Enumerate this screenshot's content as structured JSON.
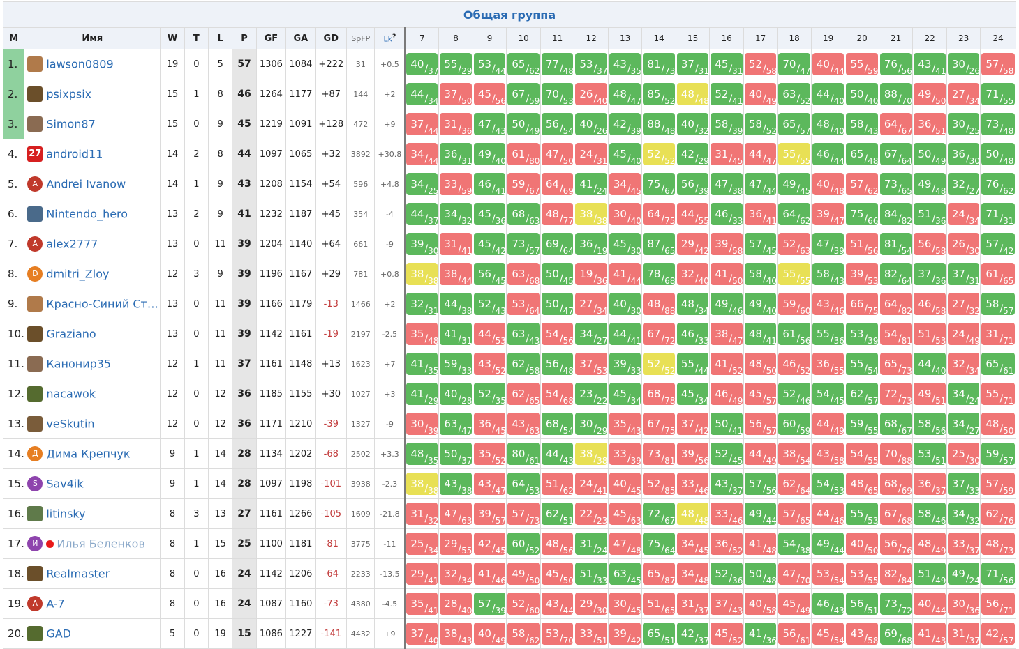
{
  "title": "Общая группа",
  "headers": {
    "pos": "M",
    "name": "Имя",
    "w": "W",
    "t": "T",
    "l": "L",
    "p": "P",
    "gf": "GF",
    "ga": "GA",
    "gd": "GD",
    "spfp": "SpFP",
    "lk": "Lk",
    "lk_help": "?",
    "rounds": [
      "7",
      "8",
      "9",
      "10",
      "11",
      "12",
      "13",
      "14",
      "15",
      "16",
      "17",
      "18",
      "19",
      "20",
      "21",
      "22",
      "23",
      "24"
    ]
  },
  "colors": {
    "win": "#5cb85c",
    "loss": "#f07575",
    "draw": "#e8e055",
    "top3": "#8fd19e",
    "link": "#2a6bb3"
  },
  "rows": [
    {
      "pos": "1.",
      "name": "lawson0809",
      "avatar": "photo",
      "w": "19",
      "t": "0",
      "l": "5",
      "p": "57",
      "gf": "1306",
      "ga": "1084",
      "gd": "+222",
      "spfp": "31",
      "lk": "+0.5",
      "res": [
        "40/37",
        "55/29",
        "53/44",
        "65/62",
        "77/48",
        "53/37",
        "43/35",
        "81/73",
        "37/31",
        "45/31",
        "52/58",
        "70/47",
        "40/44",
        "55/59",
        "76/56",
        "43/41",
        "30/26",
        "57/58"
      ]
    },
    {
      "pos": "2.",
      "name": "psixpsix",
      "avatar": "photo",
      "w": "15",
      "t": "1",
      "l": "8",
      "p": "46",
      "gf": "1264",
      "ga": "1177",
      "gd": "+87",
      "spfp": "144",
      "lk": "+2",
      "res": [
        "44/34",
        "37/50",
        "45/56",
        "67/59",
        "70/53",
        "26/40",
        "48/47",
        "85/52",
        "48/48",
        "52/41",
        "40/49",
        "63/52",
        "44/40",
        "50/40",
        "88/70",
        "49/50",
        "27/34",
        "71/55"
      ]
    },
    {
      "pos": "3.",
      "name": "Simon87",
      "avatar": "photo",
      "w": "15",
      "t": "0",
      "l": "9",
      "p": "45",
      "gf": "1219",
      "ga": "1091",
      "gd": "+128",
      "spfp": "472",
      "lk": "+9",
      "res": [
        "37/44",
        "31/36",
        "47/43",
        "50/49",
        "56/54",
        "40/26",
        "42/39",
        "88/48",
        "40/32",
        "58/39",
        "58/52",
        "65/57",
        "48/40",
        "58/43",
        "64/67",
        "36/51",
        "30/25",
        "73/48"
      ]
    },
    {
      "pos": "4.",
      "name": "android11",
      "avatar": "27",
      "w": "14",
      "t": "2",
      "l": "8",
      "p": "44",
      "gf": "1097",
      "ga": "1065",
      "gd": "+32",
      "spfp": "3892",
      "lk": "+30.8",
      "res": [
        "34/44",
        "36/31",
        "49/40",
        "61/80",
        "47/50",
        "24/31",
        "45/40",
        "52/52",
        "42/29",
        "31/45",
        "44/47",
        "55/55",
        "46/44",
        "65/48",
        "67/64",
        "50/49",
        "36/30",
        "50/48"
      ]
    },
    {
      "pos": "5.",
      "name": "Andrei Ivanow",
      "avatar": "A",
      "w": "14",
      "t": "1",
      "l": "9",
      "p": "43",
      "gf": "1208",
      "ga": "1154",
      "gd": "+54",
      "spfp": "596",
      "lk": "+4.8",
      "res": [
        "34/25",
        "33/59",
        "46/41",
        "59/67",
        "64/69",
        "41/24",
        "34/45",
        "75/67",
        "56/39",
        "47/38",
        "47/44",
        "49/45",
        "40/48",
        "57/62",
        "73/65",
        "49/48",
        "32/27",
        "76/62"
      ]
    },
    {
      "pos": "6.",
      "name": "Nintendo_hero",
      "avatar": "photo",
      "w": "13",
      "t": "2",
      "l": "9",
      "p": "41",
      "gf": "1232",
      "ga": "1187",
      "gd": "+45",
      "spfp": "354",
      "lk": "-4",
      "res": [
        "44/37",
        "34/32",
        "45/36",
        "68/63",
        "48/77",
        "38/38",
        "30/40",
        "64/75",
        "44/55",
        "46/33",
        "36/41",
        "64/62",
        "39/47",
        "75/66",
        "84/82",
        "51/36",
        "24/34",
        "71/31"
      ]
    },
    {
      "pos": "7.",
      "name": "alex2777",
      "avatar": "A",
      "w": "13",
      "t": "0",
      "l": "11",
      "p": "39",
      "gf": "1204",
      "ga": "1140",
      "gd": "+64",
      "spfp": "661",
      "lk": "-9",
      "res": [
        "39/30",
        "31/41",
        "45/42",
        "73/57",
        "69/64",
        "36/19",
        "45/30",
        "87/65",
        "29/42",
        "39/58",
        "57/45",
        "52/63",
        "47/39",
        "51/56",
        "81/54",
        "56/58",
        "26/30",
        "57/42"
      ]
    },
    {
      "pos": "8.",
      "name": "dmitri_Zloy",
      "avatar": "D",
      "w": "12",
      "t": "3",
      "l": "9",
      "p": "39",
      "gf": "1196",
      "ga": "1167",
      "gd": "+29",
      "spfp": "781",
      "lk": "+0.8",
      "res": [
        "38/38",
        "38/44",
        "56/45",
        "63/68",
        "50/45",
        "19/36",
        "41/44",
        "78/68",
        "32/40",
        "41/50",
        "58/40",
        "55/55",
        "58/43",
        "39/53",
        "82/64",
        "37/36",
        "37/31",
        "61/65"
      ]
    },
    {
      "pos": "9.",
      "name": "Красно-Синий Ст…",
      "avatar": "photo",
      "w": "13",
      "t": "0",
      "l": "11",
      "p": "39",
      "gf": "1166",
      "ga": "1179",
      "gd": "-13",
      "spfp": "1466",
      "lk": "+2",
      "res": [
        "32/31",
        "44/38",
        "52/43",
        "53/64",
        "50/47",
        "27/34",
        "40/30",
        "48/88",
        "48/34",
        "49/46",
        "49/40",
        "59/60",
        "43/46",
        "66/75",
        "64/82",
        "46/58",
        "27/32",
        "58/57"
      ]
    },
    {
      "pos": "10.",
      "name": "Graziano",
      "avatar": "photo",
      "w": "13",
      "t": "0",
      "l": "11",
      "p": "39",
      "gf": "1142",
      "ga": "1161",
      "gd": "-19",
      "spfp": "2197",
      "lk": "-2.5",
      "res": [
        "35/48",
        "41/31",
        "44/53",
        "63/43",
        "54/56",
        "34/27",
        "44/41",
        "67/72",
        "46/33",
        "38/47",
        "48/41",
        "61/56",
        "55/36",
        "53/39",
        "54/81",
        "51/53",
        "24/49",
        "31/71"
      ]
    },
    {
      "pos": "11.",
      "name": "Канонир35",
      "avatar": "photo",
      "w": "12",
      "t": "1",
      "l": "11",
      "p": "37",
      "gf": "1161",
      "ga": "1148",
      "gd": "+13",
      "spfp": "1623",
      "lk": "+7",
      "res": [
        "41/35",
        "59/33",
        "43/52",
        "62/58",
        "56/48",
        "37/53",
        "39/33",
        "52/52",
        "55/44",
        "41/52",
        "48/50",
        "46/52",
        "36/55",
        "55/54",
        "65/73",
        "44/40",
        "32/34",
        "65/61"
      ]
    },
    {
      "pos": "12.",
      "name": "nacawok",
      "avatar": "photo",
      "w": "12",
      "t": "0",
      "l": "12",
      "p": "36",
      "gf": "1185",
      "ga": "1155",
      "gd": "+30",
      "spfp": "1027",
      "lk": "+3",
      "res": [
        "41/29",
        "40/28",
        "52/35",
        "62/65",
        "54/68",
        "23/22",
        "45/34",
        "68/78",
        "45/34",
        "46/49",
        "45/57",
        "52/46",
        "54/45",
        "62/57",
        "72/73",
        "49/51",
        "34/24",
        "55/71"
      ]
    },
    {
      "pos": "13.",
      "name": "veSkutin",
      "avatar": "photo",
      "w": "12",
      "t": "0",
      "l": "12",
      "p": "36",
      "gf": "1171",
      "ga": "1210",
      "gd": "-39",
      "spfp": "1327",
      "lk": "-9",
      "res": [
        "30/39",
        "63/47",
        "36/45",
        "43/63",
        "68/54",
        "30/29",
        "35/43",
        "67/75",
        "37/42",
        "50/41",
        "56/57",
        "60/59",
        "44/49",
        "59/55",
        "68/67",
        "58/56",
        "34/27",
        "48/50"
      ]
    },
    {
      "pos": "14.",
      "name": "Дима Крепчук",
      "avatar": "Д",
      "w": "9",
      "t": "1",
      "l": "14",
      "p": "28",
      "gf": "1134",
      "ga": "1202",
      "gd": "-68",
      "spfp": "2502",
      "lk": "+3.3",
      "res": [
        "48/35",
        "50/37",
        "35/52",
        "80/61",
        "44/43",
        "38/38",
        "33/39",
        "73/81",
        "39/56",
        "52/45",
        "44/49",
        "38/54",
        "43/58",
        "54/55",
        "70/88",
        "53/51",
        "25/30",
        "59/57"
      ]
    },
    {
      "pos": "15.",
      "name": "Sav4ik",
      "avatar": "S",
      "w": "9",
      "t": "1",
      "l": "14",
      "p": "28",
      "gf": "1097",
      "ga": "1198",
      "gd": "-101",
      "spfp": "3938",
      "lk": "-2.3",
      "res": [
        "38/38",
        "43/38",
        "43/47",
        "64/53",
        "51/62",
        "24/41",
        "40/45",
        "52/85",
        "33/46",
        "43/37",
        "57/56",
        "62/64",
        "54/53",
        "48/65",
        "68/69",
        "36/37",
        "37/33",
        "57/59"
      ]
    },
    {
      "pos": "16.",
      "name": "litinsky",
      "avatar": "photo",
      "w": "8",
      "t": "3",
      "l": "13",
      "p": "27",
      "gf": "1161",
      "ga": "1266",
      "gd": "-105",
      "spfp": "1609",
      "lk": "-21.8",
      "res": [
        "31/32",
        "47/63",
        "39/57",
        "57/73",
        "62/51",
        "22/23",
        "45/63",
        "72/67",
        "48/48",
        "33/46",
        "49/44",
        "57/65",
        "44/46",
        "55/53",
        "67/68",
        "58/46",
        "34/32",
        "62/76"
      ]
    },
    {
      "pos": "17.",
      "name": "Илья Беленков",
      "avatar": "И",
      "muted": true,
      "w": "8",
      "t": "1",
      "l": "15",
      "p": "25",
      "gf": "1100",
      "ga": "1181",
      "gd": "-81",
      "spfp": "3775",
      "lk": "-11",
      "res": [
        "25/34",
        "29/55",
        "42/45",
        "60/52",
        "48/56",
        "31/24",
        "47/48",
        "75/64",
        "34/45",
        "36/52",
        "41/48",
        "54/38",
        "49/44",
        "40/50",
        "56/76",
        "48/49",
        "33/37",
        "48/73"
      ]
    },
    {
      "pos": "18.",
      "name": "Realmaster",
      "avatar": "photo",
      "w": "8",
      "t": "0",
      "l": "16",
      "p": "24",
      "gf": "1142",
      "ga": "1206",
      "gd": "-64",
      "spfp": "2233",
      "lk": "-13.5",
      "res": [
        "29/41",
        "32/34",
        "41/46",
        "49/50",
        "45/50",
        "51/33",
        "63/45",
        "65/87",
        "34/48",
        "52/36",
        "50/48",
        "47/70",
        "53/54",
        "53/55",
        "82/84",
        "51/49",
        "49/24",
        "71/56"
      ]
    },
    {
      "pos": "19.",
      "name": "A-7",
      "avatar": "A",
      "w": "8",
      "t": "0",
      "l": "16",
      "p": "24",
      "gf": "1087",
      "ga": "1160",
      "gd": "-73",
      "spfp": "4380",
      "lk": "-4.5",
      "res": [
        "35/41",
        "28/40",
        "57/39",
        "52/60",
        "43/44",
        "29/30",
        "30/45",
        "51/65",
        "31/37",
        "37/43",
        "40/58",
        "45/49",
        "46/43",
        "56/51",
        "73/72",
        "40/44",
        "30/36",
        "56/71"
      ]
    },
    {
      "pos": "20.",
      "name": "GAD",
      "avatar": "photo",
      "w": "5",
      "t": "0",
      "l": "19",
      "p": "15",
      "gf": "1086",
      "ga": "1227",
      "gd": "-141",
      "spfp": "4432",
      "lk": "+9",
      "res": [
        "37/40",
        "38/43",
        "40/49",
        "58/62",
        "53/70",
        "33/51",
        "39/42",
        "65/51",
        "42/37",
        "45/52",
        "41/36",
        "56/61",
        "45/54",
        "43/58",
        "69/68",
        "41/43",
        "31/37",
        "42/57"
      ]
    }
  ]
}
